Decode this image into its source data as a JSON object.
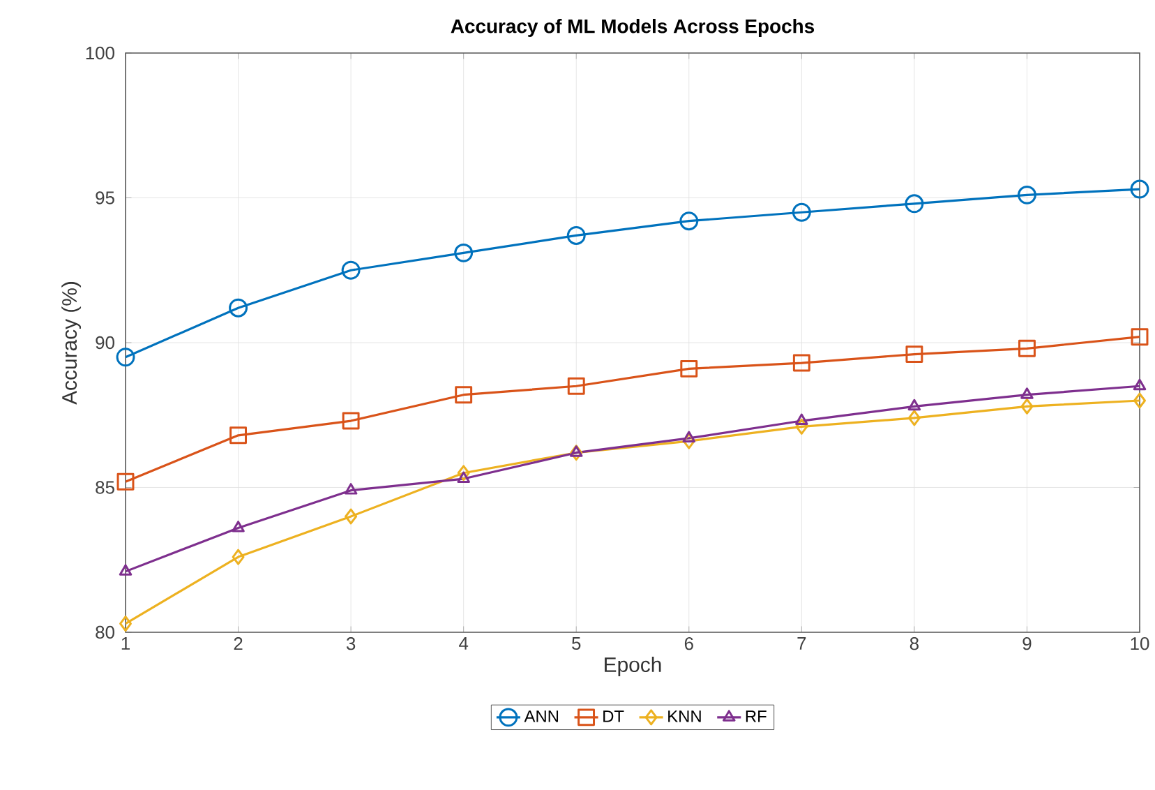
{
  "chart_data": {
    "type": "line",
    "title": "**Accuracy of ML Models Across Epochs**",
    "xlabel": "Epoch",
    "ylabel": "Accuracy (%)",
    "x": [
      1,
      2,
      3,
      4,
      5,
      6,
      7,
      8,
      9,
      10
    ],
    "series": [
      {
        "name": "ANN",
        "color": "#0072bd",
        "marker": "circle",
        "values": [
          89.5,
          91.2,
          92.5,
          93.1,
          93.7,
          94.2,
          94.5,
          94.8,
          95.1,
          95.3
        ]
      },
      {
        "name": "DT",
        "color": "#d95319",
        "marker": "square",
        "values": [
          85.2,
          86.8,
          87.3,
          88.2,
          88.5,
          89.1,
          89.3,
          89.6,
          89.8,
          90.2
        ]
      },
      {
        "name": "KNN",
        "color": "#edb120",
        "marker": "diamond",
        "values": [
          80.3,
          82.6,
          84.0,
          85.5,
          86.2,
          86.6,
          87.1,
          87.4,
          87.8,
          88.0
        ]
      },
      {
        "name": "RF",
        "color": "#7e2f8e",
        "marker": "triangle",
        "values": [
          82.1,
          83.6,
          84.9,
          85.3,
          86.2,
          86.7,
          87.3,
          87.8,
          88.2,
          88.5
        ]
      }
    ],
    "xlim": [
      1,
      10
    ],
    "xticks": [
      1,
      2,
      3,
      4,
      5,
      6,
      7,
      8,
      9,
      10
    ],
    "ylim": [
      80,
      100
    ],
    "yticks": [
      80,
      85,
      90,
      95,
      100
    ],
    "grid": true,
    "legend": "bottom",
    "line_style": "solid"
  }
}
